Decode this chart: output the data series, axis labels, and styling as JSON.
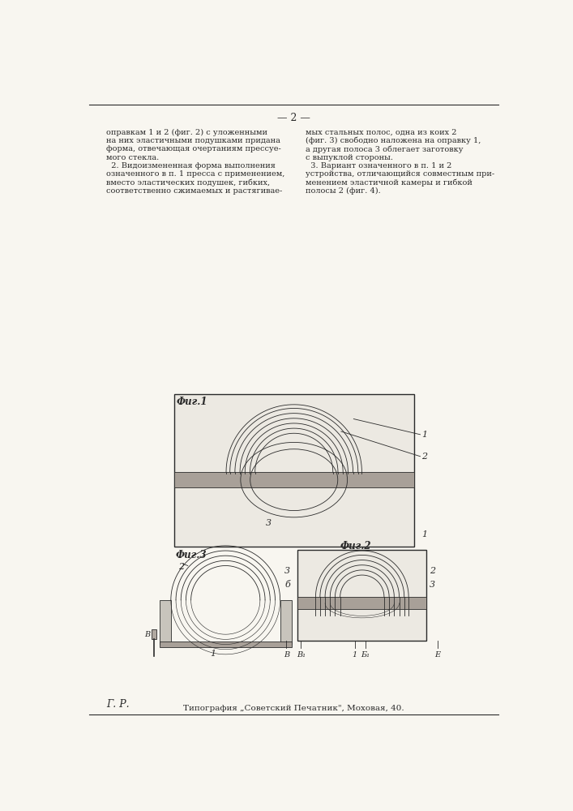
{
  "page_number": "— 2 —",
  "bg": "#f8f6f0",
  "ink": "#2a2a2a",
  "gray_light": "#d8d4cc",
  "gray_mid": "#a8a098",
  "left_col": "оправкам 1 и 2 (фиг. 2) с уложенными\nна них эластичными подушками придана\nформа, отвечающая очертаниям прессуе-\nмого стекла.\n  2. Видоизмененная форма выполнения\nозначенного в п. 1 пресса с применением,\nвместо эластических подушек, гибких,\nсоответственно сжимаемых и растягивае-",
  "right_col": "мых стальных полос, одна из коих 2\n(фиг. 3) свободно наложена на оправку 1,\nа другая полоса 3 облегает заготовку\nс выпуклой стороны.\n  3. Вариант означенного в п. 1 и 2\nустройства, отличающийся совместным при-\nменением эластичной камеры и гибкой\nполосы 2 (фиг. 4).",
  "footer_l": "Г. Р.",
  "footer_c": "Типография „Советский Печатник\", Моховая, 40."
}
